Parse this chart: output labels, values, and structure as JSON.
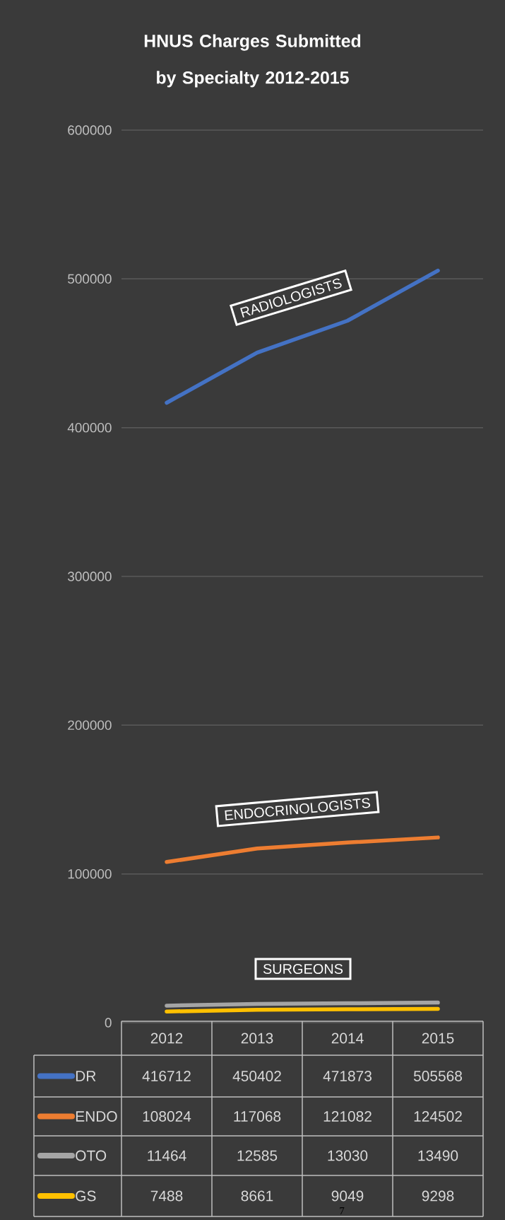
{
  "chart_data": {
    "type": "line",
    "title": "HNUS Charges Submitted by Specialty 2012-2015",
    "categories": [
      "2012",
      "2013",
      "2014",
      "2015"
    ],
    "series": [
      {
        "name": "DR",
        "color": "#4472c4",
        "values": [
          416712,
          450402,
          471873,
          505568
        ]
      },
      {
        "name": "ENDO",
        "color": "#ed7d31",
        "values": [
          108024,
          117068,
          121082,
          124502
        ]
      },
      {
        "name": "OTO",
        "color": "#a5a5a5",
        "values": [
          11464,
          12585,
          13030,
          13490
        ]
      },
      {
        "name": "GS",
        "color": "#ffc000",
        "values": [
          7488,
          8661,
          9049,
          9298
        ]
      }
    ],
    "ylim": [
      0,
      600000
    ],
    "yticks": [
      0,
      100000,
      200000,
      300000,
      400000,
      500000,
      600000
    ],
    "grid": "y",
    "legend": "bottom",
    "data_labels": true,
    "marker": "none",
    "line_style": "solid",
    "annotations": [
      "RADIOLOGISTS",
      "ENDOCRINOLOGISTS",
      "SURGEONS",
      "7"
    ]
  }
}
